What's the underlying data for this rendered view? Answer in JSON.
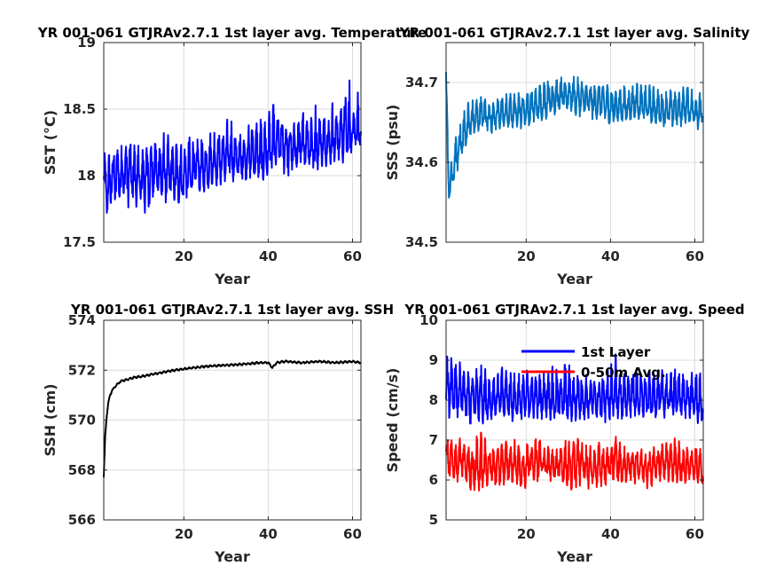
{
  "chart_data": [
    {
      "type": "line",
      "title": "YR 001-061 GTJRAv2.7.1 1st layer avg. Temperature",
      "xlabel": "Year",
      "ylabel": "SST (°C)",
      "xlim": [
        1,
        62
      ],
      "ylim": [
        17.5,
        19
      ],
      "xticks": [
        20,
        40,
        60
      ],
      "yticks": [
        17.5,
        18,
        18.5,
        19
      ],
      "ytick_labels": [
        "17.5",
        "18",
        "18.5",
        "19"
      ],
      "grid": true,
      "series": [
        {
          "color": "#0000ff",
          "x": [
            1,
            2,
            3,
            5,
            7,
            9,
            11,
            13,
            15,
            17,
            19,
            21,
            23,
            25,
            27,
            29,
            31,
            33,
            35,
            37,
            39,
            41,
            43,
            45,
            47,
            49,
            51,
            53,
            55,
            57,
            59,
            61,
            62
          ],
          "y": [
            17.95,
            17.9,
            18.0,
            18.0,
            18.05,
            17.95,
            18.0,
            18.05,
            18.0,
            18.0,
            17.95,
            18.0,
            18.05,
            18.05,
            18.1,
            18.1,
            18.15,
            18.1,
            18.15,
            18.15,
            18.15,
            18.2,
            18.25,
            18.2,
            18.2,
            18.25,
            18.2,
            18.25,
            18.25,
            18.3,
            18.3,
            18.35,
            18.3
          ],
          "low": [
            17.55,
            17.65,
            17.7,
            17.75,
            17.7,
            17.75,
            17.65,
            17.8,
            17.75,
            17.8,
            17.75,
            17.8,
            17.85,
            17.85,
            17.9,
            17.9,
            17.95,
            17.9,
            17.95,
            17.95,
            17.9,
            18.0,
            18.0,
            17.95,
            18.0,
            18.05,
            18.0,
            18.05,
            18.05,
            18.05,
            18.1,
            18.2,
            18.2
          ],
          "high": [
            18.2,
            18.2,
            18.25,
            18.35,
            18.3,
            18.3,
            18.3,
            18.3,
            18.4,
            18.3,
            18.35,
            18.35,
            18.35,
            18.3,
            18.4,
            18.4,
            18.5,
            18.4,
            18.45,
            18.45,
            18.5,
            18.6,
            18.5,
            18.45,
            18.5,
            18.55,
            18.6,
            18.5,
            18.6,
            18.6,
            18.8,
            18.75,
            18.5
          ]
        }
      ]
    },
    {
      "type": "line",
      "title": "YR 001-061 GTJRAv2.7.1 1st layer avg. Salinity",
      "xlabel": "Year",
      "ylabel": "SSS (psu)",
      "xlim": [
        1,
        62
      ],
      "ylim": [
        34.5,
        34.75
      ],
      "xticks": [
        20,
        40,
        60
      ],
      "yticks": [
        34.5,
        34.6,
        34.7
      ],
      "ytick_labels": [
        "34.5",
        "34.6",
        "34.7"
      ],
      "grid": true,
      "series": [
        {
          "color": "#0072bd",
          "x": [
            1,
            1.3,
            1.6,
            2,
            2.5,
            3,
            4,
            5,
            6,
            8,
            10,
            12,
            14,
            16,
            18,
            20,
            22,
            24,
            26,
            28,
            30,
            32,
            34,
            36,
            38,
            40,
            42,
            44,
            46,
            48,
            50,
            52,
            54,
            56,
            58,
            60,
            62
          ],
          "y": [
            34.7,
            34.62,
            34.58,
            34.57,
            34.58,
            34.6,
            34.62,
            34.63,
            34.645,
            34.655,
            34.66,
            34.655,
            34.66,
            34.66,
            34.665,
            34.665,
            34.67,
            34.675,
            34.68,
            34.68,
            34.685,
            34.68,
            34.68,
            34.675,
            34.675,
            34.67,
            34.67,
            34.67,
            34.675,
            34.67,
            34.67,
            34.665,
            34.665,
            34.665,
            34.67,
            34.665,
            34.66
          ],
          "low": [
            34.66,
            34.58,
            34.55,
            34.55,
            34.56,
            34.57,
            34.59,
            34.6,
            34.62,
            34.63,
            34.64,
            34.63,
            34.64,
            34.64,
            34.64,
            34.64,
            34.645,
            34.65,
            34.655,
            34.655,
            34.66,
            34.655,
            34.655,
            34.65,
            34.65,
            34.64,
            34.645,
            34.645,
            34.65,
            34.645,
            34.645,
            34.64,
            34.64,
            34.64,
            34.645,
            34.64,
            34.635
          ],
          "high": [
            34.72,
            34.66,
            34.61,
            34.6,
            34.61,
            34.63,
            34.65,
            34.67,
            34.68,
            34.685,
            34.69,
            34.685,
            34.69,
            34.69,
            34.695,
            34.695,
            34.7,
            34.705,
            34.715,
            34.71,
            34.715,
            34.71,
            34.705,
            34.7,
            34.705,
            34.7,
            34.7,
            34.7,
            34.705,
            34.7,
            34.7,
            34.695,
            34.695,
            34.695,
            34.7,
            34.695,
            34.69
          ]
        }
      ]
    },
    {
      "type": "line",
      "title": "YR 001-061 GTJRAv2.7.1 1st layer avg. SSH",
      "xlabel": "Year",
      "ylabel": "SSH (cm)",
      "xlim": [
        1,
        62
      ],
      "ylim": [
        566,
        574
      ],
      "xticks": [
        20,
        40,
        60
      ],
      "yticks": [
        566,
        568,
        570,
        572,
        574
      ],
      "ytick_labels": [
        "566",
        "568",
        "570",
        "572",
        "574"
      ],
      "grid": true,
      "series": [
        {
          "color": "#000000",
          "x": [
            1,
            1.1,
            1.3,
            1.6,
            2,
            2.5,
            3,
            4,
            5,
            6,
            8,
            10,
            13,
            16,
            20,
            25,
            30,
            35,
            38,
            40,
            41,
            42,
            44,
            48,
            52,
            56,
            60,
            62
          ],
          "y": [
            567.7,
            568.2,
            569.2,
            570.0,
            570.6,
            571.0,
            571.2,
            571.4,
            571.55,
            571.6,
            571.7,
            571.75,
            571.85,
            571.95,
            572.05,
            572.15,
            572.2,
            572.25,
            572.3,
            572.3,
            572.1,
            572.3,
            572.35,
            572.3,
            572.35,
            572.3,
            572.35,
            572.3
          ],
          "low": [
            567.7,
            568.1,
            569.1,
            569.9,
            570.5,
            570.95,
            571.15,
            571.35,
            571.5,
            571.55,
            571.65,
            571.7,
            571.8,
            571.9,
            572.0,
            572.1,
            572.15,
            572.2,
            572.25,
            572.25,
            572.05,
            572.25,
            572.3,
            572.25,
            572.3,
            572.25,
            572.3,
            572.25
          ],
          "high": [
            567.7,
            568.3,
            569.3,
            570.1,
            570.7,
            571.05,
            571.25,
            571.45,
            571.6,
            571.65,
            571.75,
            571.8,
            571.9,
            572.0,
            572.1,
            572.2,
            572.25,
            572.3,
            572.35,
            572.35,
            572.15,
            572.35,
            572.4,
            572.35,
            572.4,
            572.35,
            572.4,
            572.35
          ]
        }
      ]
    },
    {
      "type": "line",
      "title": "YR 001-061 GTJRAv2.7.1 1st layer avg. Speed",
      "xlabel": "Year",
      "ylabel": "Speed (cm/s)",
      "xlim": [
        1,
        62
      ],
      "ylim": [
        5,
        10
      ],
      "xticks": [
        20,
        40,
        60
      ],
      "yticks": [
        5,
        6,
        7,
        8,
        9,
        10
      ],
      "ytick_labels": [
        "5",
        "6",
        "7",
        "8",
        "9",
        "10"
      ],
      "grid": true,
      "legend": {
        "placement": "top",
        "entries": [
          "1st Layer",
          "0-50m Avg."
        ]
      },
      "series": [
        {
          "name": "1st Layer",
          "color": "#0000ff",
          "x": [
            1,
            3,
            5,
            7,
            9,
            11,
            13,
            15,
            17,
            19,
            21,
            23,
            25,
            27,
            29,
            31,
            33,
            35,
            37,
            39,
            41,
            43,
            45,
            47,
            49,
            51,
            53,
            55,
            57,
            59,
            61,
            62
          ],
          "y": [
            8.3,
            8.2,
            8.1,
            8.0,
            8.1,
            8.0,
            8.05,
            8.1,
            8.0,
            8.0,
            8.05,
            8.0,
            8.1,
            8.0,
            8.05,
            8.0,
            8.05,
            8.0,
            8.0,
            8.05,
            8.1,
            8.0,
            8.1,
            8.05,
            8.0,
            8.1,
            8.05,
            8.1,
            8.0,
            8.05,
            7.95,
            7.9
          ],
          "low": [
            7.5,
            7.4,
            7.5,
            7.2,
            7.3,
            7.4,
            7.5,
            7.3,
            7.4,
            7.3,
            7.5,
            7.4,
            7.5,
            7.3,
            7.4,
            7.3,
            7.4,
            7.5,
            7.4,
            7.2,
            7.5,
            7.4,
            7.5,
            7.5,
            7.4,
            7.5,
            7.5,
            7.4,
            7.5,
            7.4,
            7.3,
            7.2
          ],
          "high": [
            9.3,
            9.1,
            9.0,
            8.8,
            9.1,
            8.8,
            8.9,
            9.0,
            8.8,
            8.9,
            8.9,
            8.8,
            9.0,
            8.9,
            9.3,
            8.8,
            8.9,
            8.7,
            8.8,
            8.9,
            9.4,
            8.8,
            9.0,
            8.8,
            8.8,
            8.9,
            8.8,
            9.2,
            8.8,
            8.9,
            8.9,
            8.3
          ]
        },
        {
          "name": "0-50m Avg.",
          "color": "#ff0000",
          "x": [
            1,
            3,
            5,
            7,
            9,
            11,
            13,
            15,
            17,
            19,
            21,
            23,
            25,
            27,
            29,
            31,
            33,
            35,
            37,
            39,
            41,
            43,
            45,
            47,
            49,
            51,
            53,
            55,
            57,
            59,
            61,
            62
          ],
          "y": [
            6.5,
            6.4,
            6.5,
            6.3,
            6.3,
            6.4,
            6.3,
            6.5,
            6.4,
            6.3,
            6.4,
            6.5,
            6.4,
            6.3,
            6.4,
            6.3,
            6.5,
            6.3,
            6.4,
            6.3,
            6.5,
            6.3,
            6.4,
            6.4,
            6.3,
            6.4,
            6.5,
            6.4,
            6.3,
            6.4,
            6.3,
            6.1
          ],
          "low": [
            5.8,
            5.8,
            5.9,
            5.6,
            5.5,
            5.8,
            5.7,
            5.8,
            5.8,
            5.7,
            5.8,
            5.9,
            5.8,
            5.7,
            5.8,
            5.6,
            5.8,
            5.7,
            5.7,
            5.6,
            5.8,
            5.8,
            5.8,
            5.9,
            5.7,
            5.8,
            5.9,
            5.8,
            5.8,
            5.9,
            5.8,
            5.7
          ],
          "high": [
            7.3,
            7.2,
            7.1,
            7.0,
            7.5,
            6.9,
            7.0,
            7.2,
            7.1,
            7.0,
            7.1,
            7.2,
            7.0,
            7.0,
            7.1,
            7.2,
            7.1,
            6.9,
            7.0,
            7.1,
            7.3,
            6.9,
            7.0,
            6.9,
            6.9,
            7.0,
            7.1,
            7.4,
            6.9,
            7.0,
            7.0,
            6.9
          ]
        }
      ]
    }
  ]
}
